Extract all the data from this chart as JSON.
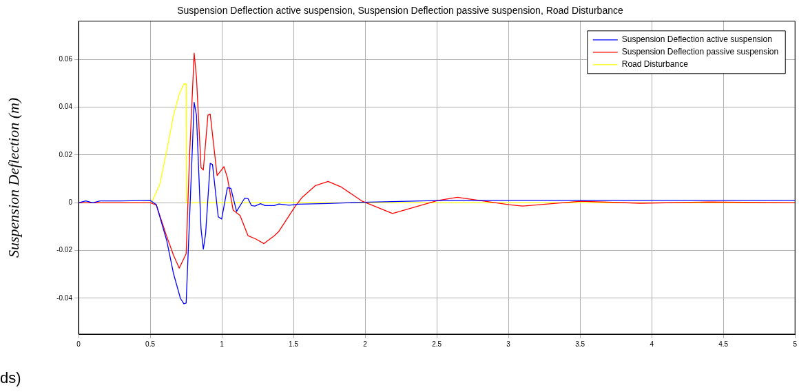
{
  "chart_data": {
    "type": "line",
    "title": "Suspension Deflection active suspension, Suspension Deflection passive suspension, Road Disturbance",
    "xlabel": "ds)",
    "ylabel": "Suspension Deflection (m)",
    "xlim": [
      0,
      5
    ],
    "xticks": [
      0,
      0.5,
      1,
      1.5,
      2,
      2.5,
      3,
      3.5,
      4,
      4.5,
      5
    ],
    "ylim": [
      -0.055,
      0.076
    ],
    "yticks": [
      -0.04,
      -0.02,
      0,
      0.02,
      0.04,
      0.06
    ],
    "grid": true,
    "legend": "top right",
    "marker": "none",
    "line_style": "solid",
    "series": [
      {
        "name": "Suspension Deflection active suspension",
        "color": "#0000ff",
        "x": [
          0,
          0.05,
          0.1,
          0.15,
          0.3,
          0.5,
          0.543,
          0.615,
          0.663,
          0.711,
          0.735,
          0.751,
          0.775,
          0.807,
          0.823,
          0.855,
          0.871,
          0.887,
          0.919,
          0.935,
          0.975,
          0.999,
          1.039,
          1.063,
          1.103,
          1.159,
          1.183,
          1.207,
          1.231,
          1.27,
          1.302,
          1.366,
          1.398,
          1.47,
          1.535,
          1.742,
          1.981,
          2.5,
          3,
          5
        ],
        "values": [
          0,
          0.0008,
          0,
          0.0008,
          0.0008,
          0.001,
          -0.0008,
          -0.0157,
          -0.0297,
          -0.04,
          -0.0423,
          -0.042,
          -0.0064,
          0.042,
          0.0367,
          -0.011,
          -0.0194,
          -0.0129,
          0.0165,
          0.016,
          -0.0059,
          -0.0068,
          0.0063,
          0.006,
          -0.0036,
          0.0019,
          0.0017,
          -0.0012,
          -0.0014,
          -0.0004,
          -0.0012,
          -0.0012,
          -0.0005,
          -0.001,
          -0.0006,
          -0.0003,
          0.0002,
          0.0009,
          0.001,
          0.001
        ]
      },
      {
        "name": "Suspension Deflection passive suspension",
        "color": "#ff0000",
        "x": [
          0,
          0.503,
          0.543,
          0.615,
          0.663,
          0.703,
          0.751,
          0.775,
          0.807,
          0.823,
          0.855,
          0.871,
          0.903,
          0.919,
          0.967,
          1.015,
          1.039,
          1.079,
          1.127,
          1.183,
          1.238,
          1.294,
          1.366,
          1.398,
          1.51,
          1.558,
          1.654,
          1.742,
          1.83,
          1.981,
          2.191,
          2.505,
          2.644,
          3.005,
          3.097,
          3.505,
          3.92,
          4.4,
          5
        ],
        "values": [
          0,
          0,
          -0.001,
          -0.014,
          -0.022,
          -0.0274,
          -0.0213,
          0.02,
          0.0626,
          0.0525,
          0.0147,
          0.0137,
          0.0367,
          0.0371,
          0.0114,
          0.0151,
          0.0105,
          -0.0031,
          -0.0053,
          -0.0138,
          -0.0152,
          -0.0171,
          -0.0138,
          -0.012,
          -0.0017,
          0.0021,
          0.0072,
          0.0089,
          0.0067,
          0.0006,
          -0.0045,
          0.0009,
          0.0023,
          -0.0008,
          -0.0014,
          0.0006,
          -0.0002,
          0.0003,
          0
        ]
      },
      {
        "name": "Road Disturbance",
        "color": "#ffff00",
        "x": [
          0,
          0.51,
          0.567,
          0.615,
          0.663,
          0.703,
          0.735,
          0.751,
          0.752,
          5
        ],
        "values": [
          0,
          0,
          0.0077,
          0.0217,
          0.0367,
          0.0455,
          0.0497,
          0.0498,
          0,
          0
        ]
      }
    ]
  }
}
